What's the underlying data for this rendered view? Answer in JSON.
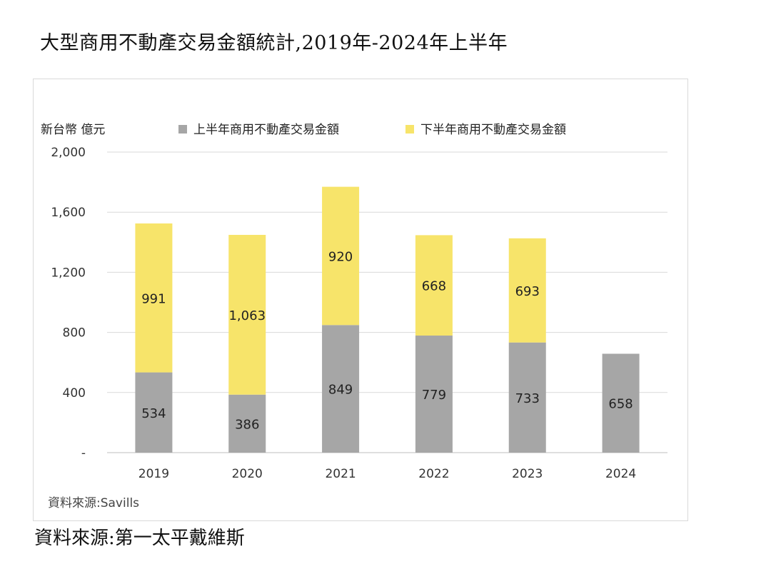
{
  "title": "大型商用不動產交易金額統計,2019年-2024年上半年",
  "footer_source": "資料來源:第一太平戴維斯",
  "chart_data": {
    "type": "bar",
    "stacked": true,
    "unit_label": "新台幣 億元",
    "categories": [
      "2019",
      "2020",
      "2021",
      "2022",
      "2023",
      "2024"
    ],
    "series": [
      {
        "name": "上半年商用不動產交易金額",
        "color": "#a6a6a6",
        "values": [
          534,
          386,
          849,
          779,
          733,
          658
        ],
        "labels": [
          "534",
          "386",
          "849",
          "779",
          "733",
          "658"
        ]
      },
      {
        "name": "下半年商用不動產交易金額",
        "color": "#f7e46a",
        "values": [
          991,
          1063,
          920,
          668,
          693,
          null
        ],
        "labels": [
          "991",
          "1,063",
          "920",
          "668",
          "693",
          ""
        ]
      }
    ],
    "ylim": [
      0,
      2000
    ],
    "yticks": [
      0,
      400,
      800,
      1200,
      1600,
      2000
    ],
    "ytick_labels": [
      "-",
      "400",
      "800",
      "1,200",
      "1,600",
      "2,000"
    ],
    "grid": true,
    "legend_position": "top",
    "source_note": "資料來源:Savills"
  }
}
